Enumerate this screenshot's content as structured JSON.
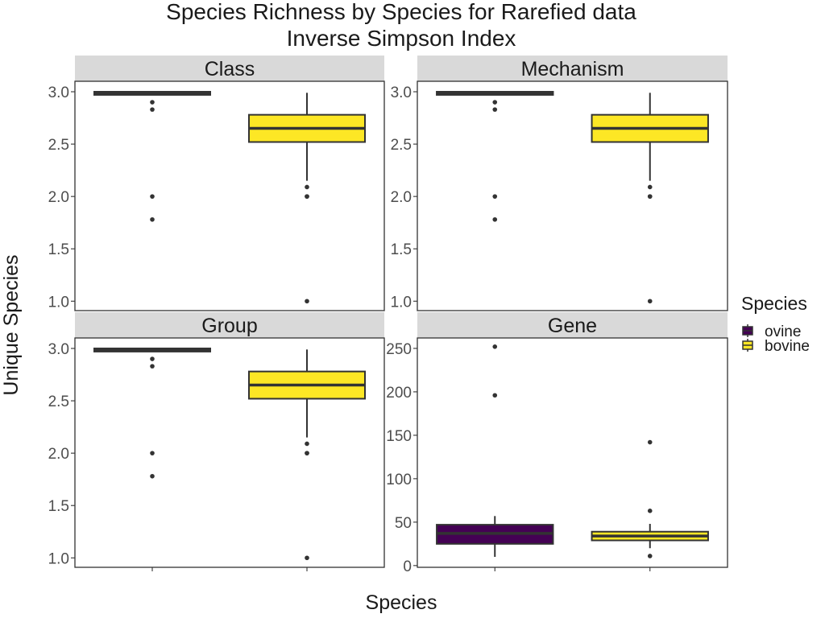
{
  "title_line1": "Species Richness by Species for Rarefied data",
  "title_line2": "Inverse Simpson Index",
  "xlabel": "Species",
  "ylabel": "Unique Species",
  "legend": {
    "title": "Species",
    "items": [
      {
        "label": "ovine",
        "color": "#440154"
      },
      {
        "label": "bovine",
        "color": "#FDE725"
      }
    ]
  },
  "chart_data": [
    {
      "type": "boxplot",
      "facet": "Class",
      "ylim": [
        0.91,
        3.1
      ],
      "yticks": [
        1.0,
        1.5,
        2.0,
        2.5,
        3.0
      ],
      "tick_labels": [
        "1.0",
        "1.5",
        "2.0",
        "2.5",
        "3.0"
      ],
      "series": [
        {
          "name": "ovine",
          "min": 2.97,
          "q1": 2.97,
          "median": 2.99,
          "q3": 3.0,
          "max": 3.0,
          "outliers": [
            2.9,
            2.83,
            2.0,
            1.78
          ]
        },
        {
          "name": "bovine",
          "min": 2.15,
          "q1": 2.52,
          "median": 2.65,
          "q3": 2.78,
          "max": 2.99,
          "outliers": [
            2.09,
            2.0,
            2.0,
            1.0
          ]
        }
      ]
    },
    {
      "type": "boxplot",
      "facet": "Mechanism",
      "ylim": [
        0.91,
        3.1
      ],
      "yticks": [
        1.0,
        1.5,
        2.0,
        2.5,
        3.0
      ],
      "tick_labels": [
        "1.0",
        "1.5",
        "2.0",
        "2.5",
        "3.0"
      ],
      "series": [
        {
          "name": "ovine",
          "min": 2.97,
          "q1": 2.97,
          "median": 2.99,
          "q3": 3.0,
          "max": 3.0,
          "outliers": [
            2.9,
            2.83,
            2.0,
            1.78
          ]
        },
        {
          "name": "bovine",
          "min": 2.15,
          "q1": 2.52,
          "median": 2.65,
          "q3": 2.78,
          "max": 2.99,
          "outliers": [
            2.09,
            2.0,
            2.0,
            1.0
          ]
        }
      ]
    },
    {
      "type": "boxplot",
      "facet": "Group",
      "ylim": [
        0.91,
        3.1
      ],
      "yticks": [
        1.0,
        1.5,
        2.0,
        2.5,
        3.0
      ],
      "tick_labels": [
        "1.0",
        "1.5",
        "2.0",
        "2.5",
        "3.0"
      ],
      "series": [
        {
          "name": "ovine",
          "min": 2.97,
          "q1": 2.97,
          "median": 2.99,
          "q3": 3.0,
          "max": 3.0,
          "outliers": [
            2.9,
            2.83,
            2.0,
            1.78
          ]
        },
        {
          "name": "bovine",
          "min": 2.15,
          "q1": 2.52,
          "median": 2.65,
          "q3": 2.78,
          "max": 2.99,
          "outliers": [
            2.09,
            2.0,
            2.0,
            1.0
          ]
        }
      ]
    },
    {
      "type": "boxplot",
      "facet": "Gene",
      "ylim": [
        -2,
        262
      ],
      "yticks": [
        0,
        50,
        100,
        150,
        200,
        250
      ],
      "tick_labels": [
        "0",
        "50",
        "100",
        "150",
        "200",
        "250"
      ],
      "series": [
        {
          "name": "ovine",
          "min": 10,
          "q1": 25,
          "median": 37,
          "q3": 47,
          "max": 57,
          "outliers": [
            252,
            196
          ]
        },
        {
          "name": "bovine",
          "min": 20,
          "q1": 29,
          "median": 34,
          "q3": 39,
          "max": 48,
          "outliers": [
            142,
            63,
            11
          ]
        }
      ]
    }
  ]
}
